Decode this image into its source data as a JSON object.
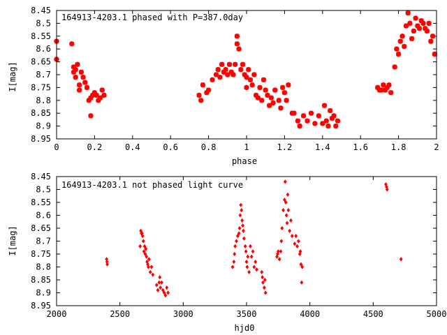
{
  "colors": {
    "points": "#ff0000",
    "frame": "#000000",
    "background": "#ffffff"
  },
  "chart_data": [
    {
      "type": "scatter",
      "title": "164913-4203.1 phased with P=387.0day",
      "xlabel": "phase",
      "ylabel": "I[mag]",
      "xlim": [
        0,
        2
      ],
      "ylim": [
        8.95,
        8.45
      ],
      "y_inverted": true,
      "grid": false,
      "marker": "star",
      "x_ticks": [
        "0",
        "0.2",
        "0.4",
        "0.6",
        "0.8",
        "1",
        "1.2",
        "1.4",
        "1.6",
        "1.8",
        "2"
      ],
      "y_ticks": [
        "8.45",
        "8.5",
        "8.55",
        "8.6",
        "8.65",
        "8.7",
        "8.75",
        "8.8",
        "8.85",
        "8.9",
        "8.95"
      ],
      "series": [
        {
          "x": [
            0.0,
            0.0,
            0.08,
            0.09,
            0.09,
            0.1,
            0.1,
            0.11,
            0.12,
            0.12,
            0.13,
            0.14,
            0.15,
            0.16,
            0.17,
            0.18,
            0.18,
            0.19,
            0.2,
            0.21,
            0.22,
            0.23,
            0.24,
            0.25,
            0.75,
            0.76,
            0.77,
            0.79,
            0.8,
            0.82,
            0.84,
            0.85,
            0.86,
            0.87,
            0.88,
            0.89,
            0.9,
            0.91,
            0.92,
            0.93,
            0.94,
            0.95,
            0.95,
            0.96,
            0.97,
            0.98,
            0.99,
            1.0,
            1.0,
            1.01,
            1.02,
            1.03,
            1.04,
            1.05,
            1.06,
            1.07,
            1.08,
            1.09,
            1.1,
            1.11,
            1.12,
            1.13,
            1.14,
            1.15,
            1.17,
            1.18,
            1.19,
            1.2,
            1.21,
            1.22,
            1.24,
            1.25,
            1.27,
            1.28,
            1.3,
            1.32,
            1.34,
            1.36,
            1.38,
            1.4,
            1.41,
            1.42,
            1.43,
            1.44,
            1.45,
            1.46,
            1.47,
            1.48,
            1.69,
            1.7,
            1.71,
            1.72,
            1.73,
            1.74,
            1.75,
            1.76,
            1.78,
            1.79,
            1.8,
            1.81,
            1.82,
            1.83,
            1.84,
            1.85,
            1.86,
            1.87,
            1.88,
            1.89,
            1.9,
            1.91,
            1.92,
            1.93,
            1.94,
            1.95,
            1.96,
            1.97,
            1.98,
            1.99
          ],
          "y": [
            8.57,
            8.64,
            8.58,
            8.67,
            8.69,
            8.68,
            8.71,
            8.66,
            8.76,
            8.74,
            8.69,
            8.71,
            8.73,
            8.75,
            8.8,
            8.79,
            8.86,
            8.78,
            8.77,
            8.78,
            8.8,
            8.79,
            8.76,
            8.78,
            8.78,
            8.8,
            8.74,
            8.77,
            8.76,
            8.72,
            8.7,
            8.68,
            8.71,
            8.66,
            8.69,
            8.68,
            8.7,
            8.66,
            8.69,
            8.7,
            8.66,
            8.55,
            8.58,
            8.6,
            8.68,
            8.66,
            8.7,
            8.71,
            8.75,
            8.68,
            8.72,
            8.74,
            8.7,
            8.78,
            8.79,
            8.75,
            8.8,
            8.72,
            8.76,
            8.78,
            8.82,
            8.79,
            8.81,
            8.76,
            8.8,
            8.83,
            8.75,
            8.77,
            8.8,
            8.74,
            8.85,
            8.85,
            8.88,
            8.9,
            8.86,
            8.88,
            8.85,
            8.89,
            8.86,
            8.89,
            8.82,
            8.88,
            8.9,
            8.84,
            8.87,
            8.86,
            8.9,
            8.88,
            8.75,
            8.76,
            8.76,
            8.74,
            8.76,
            8.75,
            8.74,
            8.77,
            8.67,
            8.6,
            8.62,
            8.57,
            8.55,
            8.59,
            8.51,
            8.46,
            8.5,
            8.56,
            8.53,
            8.48,
            8.51,
            8.52,
            8.49,
            8.5,
            8.52,
            8.53,
            8.5,
            8.57,
            8.55,
            8.62
          ]
        }
      ]
    },
    {
      "type": "scatter",
      "title": "164913-4203.1 not phased light curve",
      "xlabel": "hjd0",
      "ylabel": "I[mag]",
      "xlim": [
        2000,
        5000
      ],
      "ylim": [
        8.95,
        8.45
      ],
      "y_inverted": true,
      "grid": false,
      "marker": "diamond",
      "x_ticks": [
        "2000",
        "2500",
        "3000",
        "3500",
        "4000",
        "4500",
        "5000"
      ],
      "y_ticks": [
        "8.45",
        "8.5",
        "8.55",
        "8.6",
        "8.65",
        "8.7",
        "8.75",
        "8.8",
        "8.85",
        "8.9",
        "8.95"
      ],
      "series": [
        {
          "x": [
            2395,
            2398,
            2400,
            2660,
            2665,
            2670,
            2675,
            2680,
            2685,
            2690,
            2695,
            2700,
            2705,
            2710,
            2715,
            2720,
            2725,
            2730,
            2740,
            2750,
            2760,
            2790,
            2800,
            2810,
            2815,
            2820,
            2830,
            2840,
            2850,
            2860,
            2870,
            2880,
            3390,
            3400,
            3405,
            3410,
            3420,
            3430,
            3440,
            3445,
            3450,
            3455,
            3460,
            3465,
            3470,
            3475,
            3480,
            3490,
            3495,
            3500,
            3505,
            3510,
            3520,
            3530,
            3540,
            3550,
            3560,
            3570,
            3580,
            3620,
            3625,
            3630,
            3640,
            3645,
            3650,
            3740,
            3745,
            3750,
            3760,
            3770,
            3775,
            3780,
            3790,
            3800,
            3805,
            3810,
            3815,
            3820,
            3825,
            3830,
            3840,
            3850,
            3860,
            3880,
            3890,
            3900,
            3910,
            3920,
            3925,
            3930,
            3935,
            3940,
            4600,
            4605,
            4610,
            4720
          ],
          "y": [
            8.77,
            8.78,
            8.79,
            8.72,
            8.66,
            8.67,
            8.67,
            8.68,
            8.7,
            8.74,
            8.72,
            8.75,
            8.73,
            8.76,
            8.78,
            8.79,
            8.8,
            8.77,
            8.82,
            8.8,
            8.83,
            8.87,
            8.89,
            8.86,
            8.84,
            8.88,
            8.86,
            8.89,
            8.9,
            8.91,
            8.88,
            8.9,
            8.8,
            8.78,
            8.75,
            8.72,
            8.7,
            8.68,
            8.67,
            8.65,
            8.6,
            8.56,
            8.58,
            8.62,
            8.64,
            8.66,
            8.69,
            8.72,
            8.74,
            8.78,
            8.8,
            8.76,
            8.82,
            8.72,
            8.76,
            8.74,
            8.8,
            8.78,
            8.81,
            8.82,
            8.84,
            8.86,
            8.88,
            8.85,
            8.9,
            8.76,
            8.75,
            8.74,
            8.77,
            8.74,
            8.7,
            8.65,
            8.58,
            8.54,
            8.47,
            8.55,
            8.6,
            8.63,
            8.52,
            8.58,
            8.66,
            8.62,
            8.68,
            8.71,
            8.68,
            8.72,
            8.7,
            8.75,
            8.74,
            8.79,
            8.86,
            8.8,
            8.48,
            8.49,
            8.5,
            8.77
          ]
        }
      ]
    }
  ]
}
